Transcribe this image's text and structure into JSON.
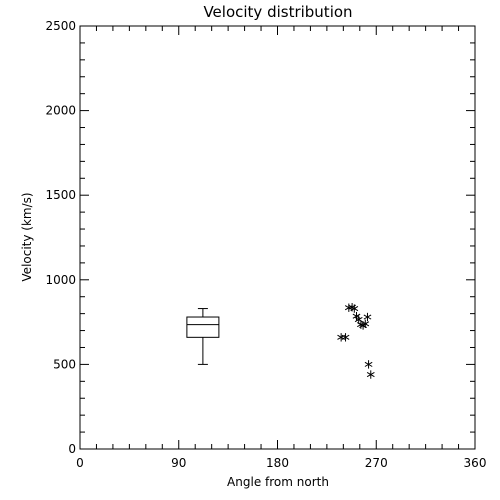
{
  "chart_data": {
    "type": "scatter",
    "title": "Velocity distribution",
    "xlabel": "Angle from north",
    "ylabel": "Velocity (km/s)",
    "xlim": [
      0,
      360
    ],
    "ylim": [
      0,
      2500
    ],
    "x_ticks": [
      0,
      90,
      180,
      270,
      360
    ],
    "y_ticks": [
      0,
      500,
      1000,
      1500,
      2000,
      2500
    ],
    "grid": false,
    "boxplot": {
      "x": 112,
      "whisker_low": 500,
      "q1": 660,
      "median": 735,
      "q3": 780,
      "whisker_high": 830
    },
    "points": [
      {
        "x": 238,
        "y": 660
      },
      {
        "x": 242,
        "y": 660
      },
      {
        "x": 245,
        "y": 835
      },
      {
        "x": 248,
        "y": 838
      },
      {
        "x": 250,
        "y": 830
      },
      {
        "x": 252,
        "y": 785
      },
      {
        "x": 254,
        "y": 765
      },
      {
        "x": 256,
        "y": 735
      },
      {
        "x": 258,
        "y": 730
      },
      {
        "x": 260,
        "y": 740
      },
      {
        "x": 262,
        "y": 780
      },
      {
        "x": 263,
        "y": 500
      },
      {
        "x": 265,
        "y": 440
      }
    ]
  }
}
